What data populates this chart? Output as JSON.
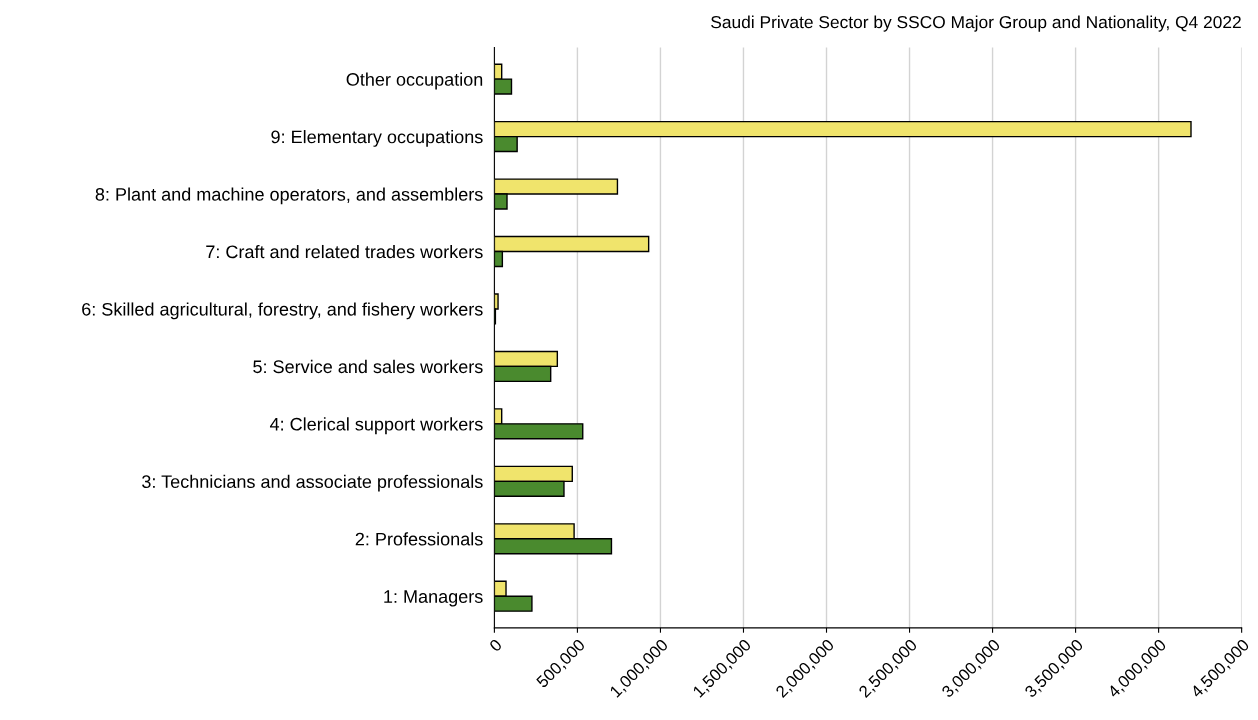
{
  "chart_data": {
    "type": "bar",
    "orientation": "horizontal",
    "title": "Saudi Private Sector by SSCO Major Group and Nationality, Q4 2022",
    "categories": [
      "Other occupation",
      "9: Elementary occupations",
      "8: Plant and machine operators, and assemblers",
      "7: Craft and related trades workers",
      "6: Skilled agricultural, forestry, and fishery workers",
      "5: Service and sales workers",
      "4: Clerical support workers",
      "3: Technicians and associate professionals",
      "2: Professionals",
      "1: Managers"
    ],
    "series": [
      {
        "color": "#f0e46c",
        "values": [
          44000,
          4195000,
          741000,
          929000,
          22000,
          379000,
          44000,
          469000,
          480000,
          70000
        ]
      },
      {
        "color": "#4a8a2e",
        "values": [
          103000,
          137000,
          76000,
          48000,
          6000,
          339000,
          532000,
          419000,
          705000,
          226000
        ]
      }
    ],
    "xlim": [
      0,
      4500000
    ],
    "xticks": [
      0,
      {
        "value": 500000,
        "label": "500,000"
      },
      {
        "value": 1000000,
        "label": "1,000,000"
      },
      {
        "value": 1500000,
        "label": "1,500,000"
      },
      {
        "value": 2000000,
        "label": "2,000,000"
      },
      {
        "value": 2500000,
        "label": "2,500,000"
      },
      {
        "value": 3000000,
        "label": "3,000,000"
      },
      {
        "value": 3500000,
        "label": "3,500,000"
      },
      {
        "value": 4000000,
        "label": "4,000,000"
      },
      {
        "value": 4500000,
        "label": "4,500,000"
      }
    ],
    "grid": "x"
  }
}
